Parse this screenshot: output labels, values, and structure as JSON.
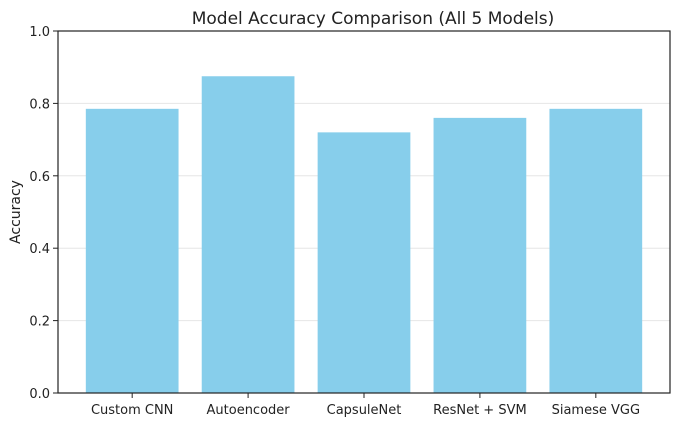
{
  "chart_data": {
    "type": "bar",
    "title": "Model Accuracy Comparison (All 5 Models)",
    "xlabel": "",
    "ylabel": "Accuracy",
    "categories": [
      "Custom CNN",
      "Autoencoder",
      "CapsuleNet",
      "ResNet + SVM",
      "Siamese VGG"
    ],
    "values": [
      0.785,
      0.875,
      0.72,
      0.76,
      0.785
    ],
    "ylim": [
      0,
      1.0
    ],
    "yticks": [
      "0.0",
      "0.2",
      "0.4",
      "0.6",
      "0.8",
      "1.0"
    ],
    "grid": "y-axis only",
    "bar_color": "#87ceeb",
    "grid_color": "#e6e6e6",
    "axis_color": "#222222"
  }
}
